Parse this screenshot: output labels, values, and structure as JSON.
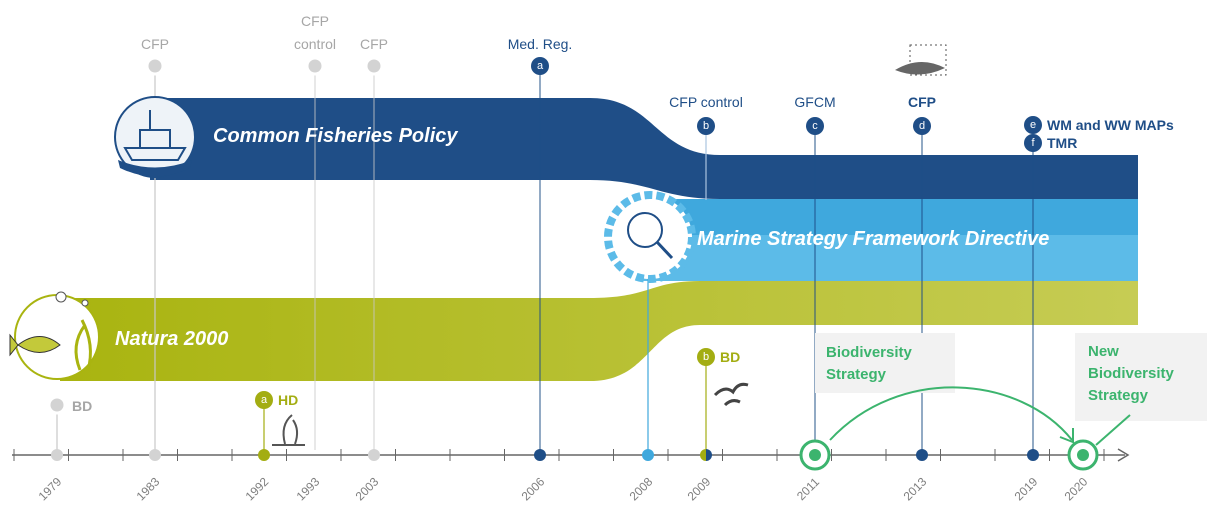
{
  "bands": [
    {
      "label": "Common Fisheries Policy"
    },
    {
      "label": "Marine Strategy Framework Directive"
    },
    {
      "label": "Natura 2000"
    }
  ],
  "top_events": [
    {
      "label": "CFP"
    },
    {
      "label": "CFP control"
    },
    {
      "label": "CFP"
    },
    {
      "badge": "a",
      "label": "Med. Reg."
    },
    {
      "badge": "b",
      "label": "CFP control"
    },
    {
      "badge": "c",
      "label": "GFCM"
    },
    {
      "badge": "d",
      "label": "CFP"
    },
    {
      "badge": "e",
      "label": "WM and WW MAPs"
    },
    {
      "badge": "f",
      "label": "TMR"
    }
  ],
  "bottom_events": [
    {
      "label": "BD"
    },
    {
      "badge": "a",
      "label": "HD"
    },
    {
      "badge": "b",
      "label": "BD"
    },
    {
      "label": "Biodiversity Strategy"
    },
    {
      "label": "New Biodiversity Strategy"
    }
  ],
  "years": [
    "1979",
    "1983",
    "1992",
    "1993",
    "2003",
    "2006",
    "2008",
    "2009",
    "2011",
    "2013",
    "2019",
    "2020"
  ]
}
